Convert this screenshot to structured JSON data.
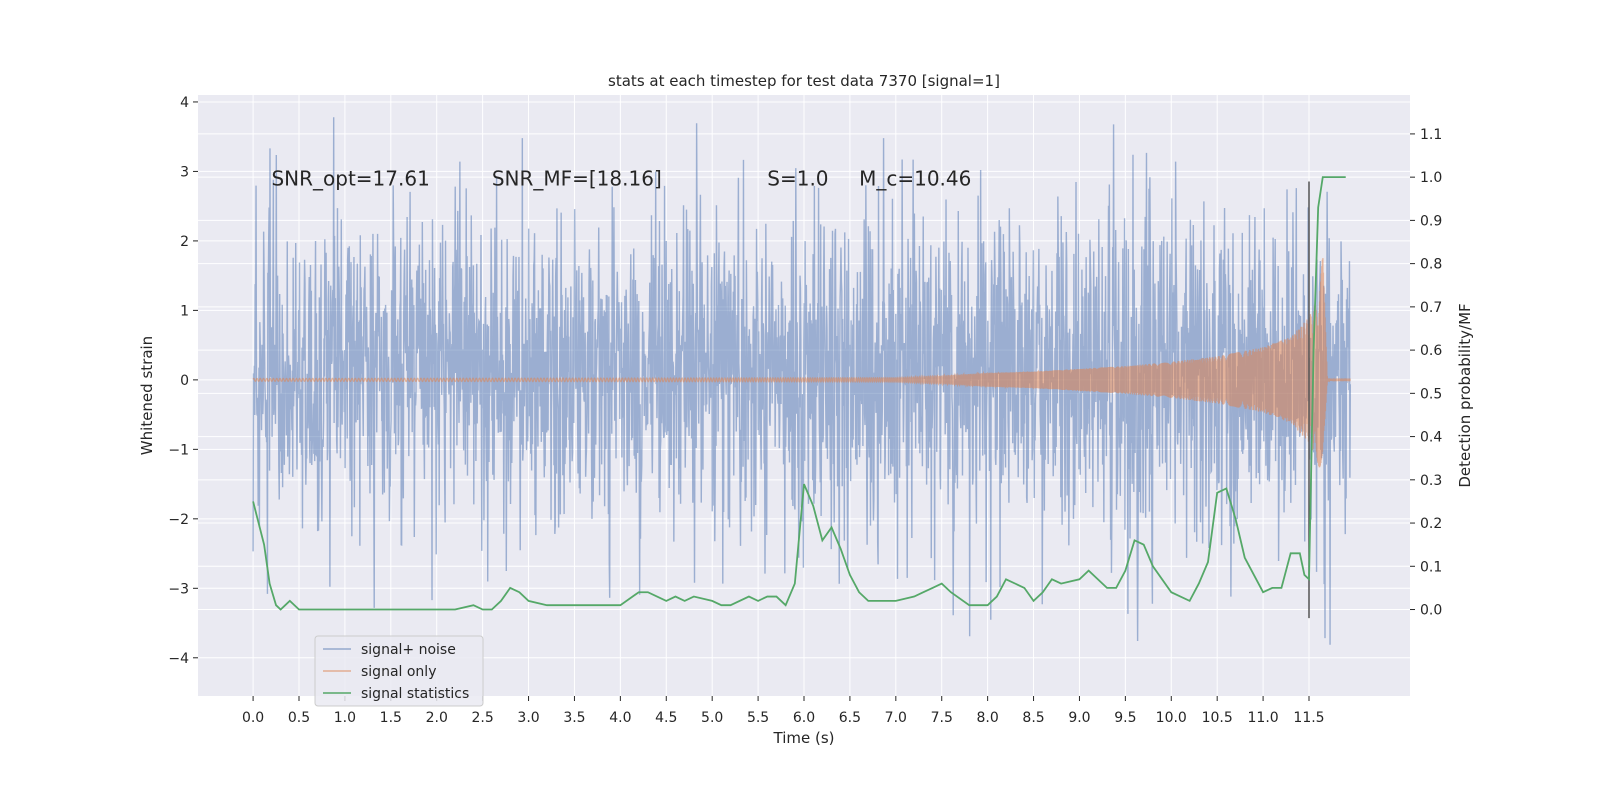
{
  "chart_data": {
    "type": "line",
    "title": "stats at each timestep for test data 7370 [signal=1]",
    "xlabel": "Time (s)",
    "ylabel": "Whitened strain",
    "y2label": "Detection probability/MF",
    "xlim": [
      -0.6,
      12.6
    ],
    "ylim": [
      -4.55,
      4.1
    ],
    "y2lim": [
      -0.2,
      1.19
    ],
    "x_ticks": [
      0.0,
      0.5,
      1.0,
      1.5,
      2.0,
      2.5,
      3.0,
      3.5,
      4.0,
      4.5,
      5.0,
      5.5,
      6.0,
      6.5,
      7.0,
      7.5,
      8.0,
      8.5,
      9.0,
      9.5,
      10.0,
      10.5,
      11.0,
      11.5
    ],
    "x_tick_labels": [
      "0.0",
      "0.5",
      "1.0",
      "1.5",
      "2.0",
      "2.5",
      "3.0",
      "3.5",
      "4.0",
      "4.5",
      "5.0",
      "5.5",
      "6.0",
      "6.5",
      "7.0",
      "7.5",
      "8.0",
      "8.5",
      "9.0",
      "9.5",
      "10.0",
      "10.5",
      "11.0",
      "11.5"
    ],
    "y_ticks": [
      -4,
      -3,
      -2,
      -1,
      0,
      1,
      2,
      3,
      4
    ],
    "y_tick_labels": [
      "−4",
      "−3",
      "−2",
      "−1",
      "0",
      "1",
      "2",
      "3",
      "4"
    ],
    "y2_ticks": [
      0.0,
      0.1,
      0.2,
      0.3,
      0.4,
      0.5,
      0.6,
      0.7,
      0.8,
      0.9,
      1.0,
      1.1
    ],
    "y2_tick_labels": [
      "0.0",
      "0.1",
      "0.2",
      "0.3",
      "0.4",
      "0.5",
      "0.6",
      "0.7",
      "0.8",
      "0.9",
      "1.0",
      "1.1"
    ],
    "grid": true,
    "legend_position": "lower-left",
    "annotations": [
      {
        "text": "SNR_opt=17.61",
        "x": 0.2,
        "y": 2.8
      },
      {
        "text": "SNR_MF=[18.16]",
        "x": 2.6,
        "y": 2.8
      },
      {
        "text": "S=1.0",
        "x": 5.6,
        "y": 2.8
      },
      {
        "text": "M_c=10.46",
        "x": 6.6,
        "y": 2.8
      }
    ],
    "marker_line": {
      "x": 11.5,
      "y2_range": [
        -0.02,
        0.99
      ]
    },
    "series": [
      {
        "name": "signal+ noise",
        "axis": "left",
        "color": "#4c72b0",
        "kind": "noise_band",
        "x_range": [
          0.0,
          11.95
        ],
        "envelope_top_p95": 2.1,
        "envelope_bottom_p95": -1.9,
        "max": 3.78,
        "min": -4.07
      },
      {
        "name": "signal only",
        "axis": "left",
        "color": "#dd8452",
        "kind": "chirp",
        "x": [
          0.0,
          7.0,
          7.5,
          8.0,
          8.5,
          9.0,
          9.5,
          10.0,
          10.5,
          11.0,
          11.3,
          11.5,
          11.6,
          11.65,
          11.7,
          11.95
        ],
        "amplitude": [
          0.02,
          0.03,
          0.06,
          0.1,
          0.12,
          0.16,
          0.2,
          0.26,
          0.34,
          0.47,
          0.62,
          0.9,
          1.2,
          1.8,
          0.02,
          0.02
        ]
      },
      {
        "name": "signal statistics",
        "axis": "right",
        "color": "#55a868",
        "x": [
          0.0,
          0.12,
          0.18,
          0.25,
          0.3,
          0.35,
          0.4,
          0.5,
          0.6,
          0.8,
          1.0,
          1.2,
          1.3,
          1.5,
          1.6,
          1.8,
          2.0,
          2.2,
          2.4,
          2.5,
          2.6,
          2.7,
          2.8,
          2.9,
          3.0,
          3.2,
          3.4,
          3.6,
          3.8,
          4.0,
          4.2,
          4.3,
          4.4,
          4.5,
          4.6,
          4.7,
          4.8,
          5.0,
          5.1,
          5.2,
          5.4,
          5.5,
          5.6,
          5.7,
          5.8,
          5.9,
          6.0,
          6.1,
          6.2,
          6.3,
          6.4,
          6.5,
          6.6,
          6.7,
          6.8,
          7.0,
          7.2,
          7.3,
          7.4,
          7.5,
          7.6,
          7.8,
          8.0,
          8.1,
          8.2,
          8.4,
          8.5,
          8.6,
          8.7,
          8.8,
          9.0,
          9.1,
          9.2,
          9.3,
          9.4,
          9.5,
          9.6,
          9.7,
          9.8,
          10.0,
          10.2,
          10.3,
          10.4,
          10.5,
          10.6,
          10.7,
          10.8,
          11.0,
          11.1,
          11.2,
          11.3,
          11.4,
          11.45,
          11.5,
          11.55,
          11.6,
          11.65,
          11.7,
          11.8,
          11.9
        ],
        "y": [
          0.25,
          0.15,
          0.06,
          0.01,
          0.0,
          0.01,
          0.02,
          0.0,
          0.0,
          0.0,
          0.0,
          0.0,
          0.0,
          0.0,
          0.0,
          0.0,
          0.0,
          0.0,
          0.01,
          0.0,
          0.0,
          0.02,
          0.05,
          0.04,
          0.02,
          0.01,
          0.01,
          0.01,
          0.01,
          0.01,
          0.04,
          0.04,
          0.03,
          0.02,
          0.03,
          0.02,
          0.03,
          0.02,
          0.01,
          0.01,
          0.03,
          0.02,
          0.03,
          0.03,
          0.01,
          0.06,
          0.29,
          0.24,
          0.16,
          0.19,
          0.14,
          0.08,
          0.04,
          0.02,
          0.02,
          0.02,
          0.03,
          0.04,
          0.05,
          0.06,
          0.04,
          0.01,
          0.01,
          0.03,
          0.07,
          0.05,
          0.02,
          0.04,
          0.07,
          0.06,
          0.07,
          0.09,
          0.07,
          0.05,
          0.05,
          0.09,
          0.16,
          0.15,
          0.1,
          0.04,
          0.02,
          0.06,
          0.11,
          0.27,
          0.28,
          0.21,
          0.12,
          0.04,
          0.05,
          0.05,
          0.13,
          0.13,
          0.08,
          0.07,
          0.6,
          0.93,
          1.0,
          1.0,
          1.0,
          1.0
        ]
      }
    ],
    "legend": [
      "signal+ noise",
      "signal only",
      "signal statistics"
    ]
  }
}
